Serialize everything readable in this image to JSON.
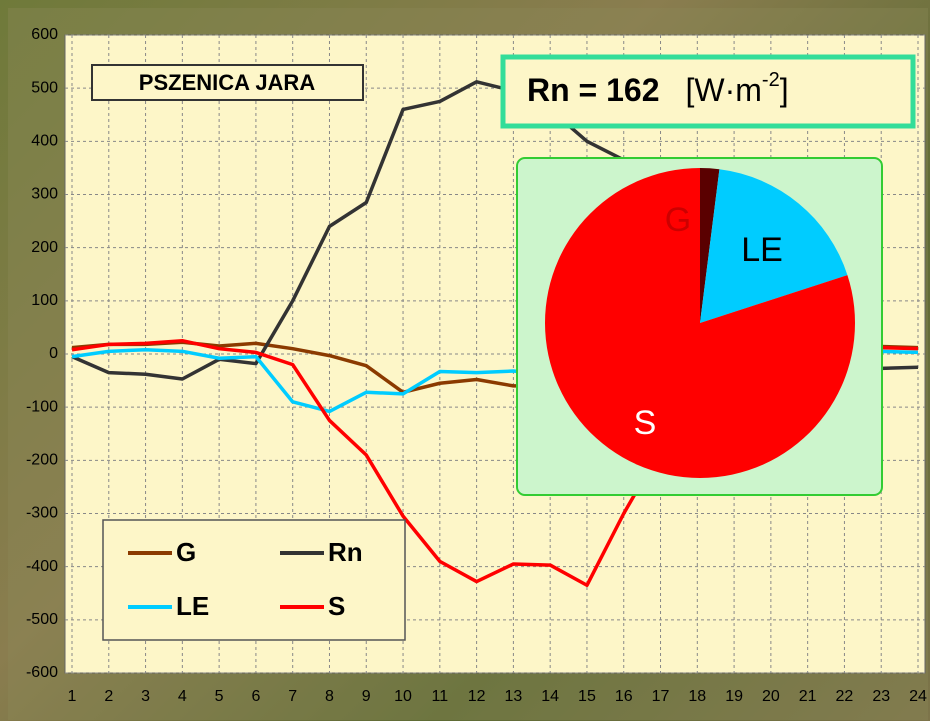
{
  "chart_data": [
    {
      "type": "line",
      "label": "PSZENICA JARA",
      "x": [
        1,
        2,
        3,
        4,
        5,
        6,
        7,
        8,
        9,
        10,
        11,
        12,
        13,
        14,
        15,
        16,
        17,
        18,
        19,
        20,
        21,
        22,
        23,
        24
      ],
      "xlim": [
        1,
        24
      ],
      "xticks": [
        1,
        2,
        3,
        4,
        5,
        6,
        7,
        8,
        9,
        10,
        11,
        12,
        13,
        14,
        15,
        16,
        17,
        18,
        19,
        20,
        21,
        22,
        23,
        24
      ],
      "ylim": [
        -600,
        600
      ],
      "yticks": [
        -600,
        -500,
        -400,
        -300,
        -200,
        -100,
        0,
        100,
        200,
        300,
        400,
        500,
        600
      ],
      "grid": true,
      "legend": "lower left",
      "series": [
        {
          "name": "G",
          "color": "#8b3a00",
          "values": [
            12,
            18,
            18,
            22,
            15,
            20,
            10,
            -3,
            -22,
            -72,
            -55,
            -48,
            -60,
            -60,
            -50,
            -40,
            -20,
            -5,
            5,
            10,
            12,
            14,
            14,
            12
          ]
        },
        {
          "name": "Rn",
          "color": "#333333",
          "values": [
            -5,
            -35,
            -38,
            -47,
            -10,
            -18,
            100,
            240,
            285,
            460,
            475,
            512,
            495,
            460,
            400,
            365,
            250,
            150,
            50,
            -10,
            -25,
            -30,
            -27,
            -25
          ]
        },
        {
          "name": "LE",
          "color": "#00ccff",
          "values": [
            -5,
            5,
            8,
            5,
            -8,
            -5,
            -90,
            -108,
            -72,
            -75,
            -33,
            -35,
            -32,
            -40,
            -45,
            -40,
            -30,
            -15,
            -5,
            0,
            2,
            3,
            5,
            3
          ]
        },
        {
          "name": "S",
          "color": "#ff0000",
          "values": [
            8,
            18,
            20,
            25,
            10,
            3,
            -20,
            -125,
            -190,
            -305,
            -390,
            -428,
            -395,
            -397,
            -435,
            -300,
            -180,
            -100,
            -40,
            0,
            10,
            12,
            12,
            10
          ]
        }
      ]
    },
    {
      "type": "pie",
      "title": "Rn = 162",
      "unit": "[W·m",
      "unit_exponent": "-2",
      "unit_close": "]",
      "categories": [
        "G",
        "LE",
        "S"
      ],
      "values": [
        2,
        18,
        80
      ],
      "colors": [
        "#5a0000",
        "#00ccff",
        "#ff0000"
      ]
    }
  ]
}
